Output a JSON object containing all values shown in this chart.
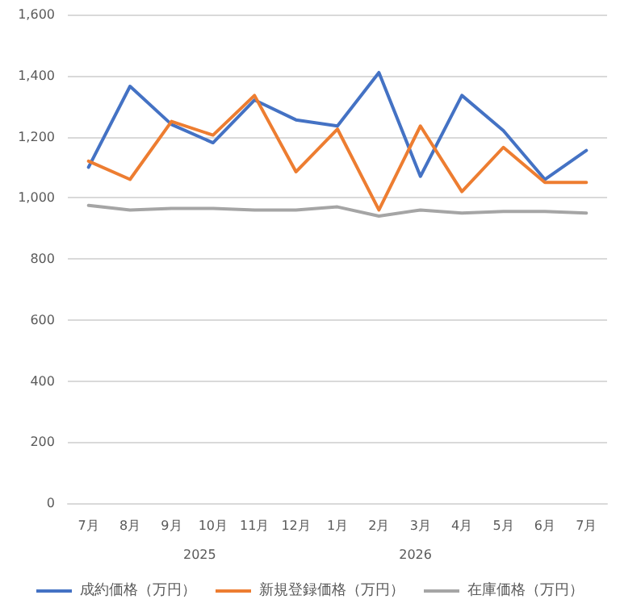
{
  "chart_data": {
    "type": "line",
    "categories": [
      "7月",
      "8月",
      "9月",
      "10月",
      "11月",
      "12月",
      "1月",
      "2月",
      "3月",
      "4月",
      "5月",
      "6月",
      "7月"
    ],
    "series": [
      {
        "name": "成約価格（万円）",
        "color": "#4472c4",
        "values": [
          1100,
          1365,
          1240,
          1180,
          1320,
          1255,
          1235,
          1410,
          1070,
          1335,
          1220,
          1060,
          1155
        ]
      },
      {
        "name": "新規登録価格（万円）",
        "color": "#ed7d31",
        "values": [
          1120,
          1060,
          1250,
          1205,
          1335,
          1085,
          1225,
          960,
          1235,
          1020,
          1165,
          1050,
          1050
        ]
      },
      {
        "name": "在庫価格（万円）",
        "color": "#a5a5a5",
        "values": [
          975,
          960,
          965,
          965,
          960,
          960,
          970,
          940,
          960,
          950,
          955,
          955,
          950
        ]
      }
    ],
    "annotations": [
      "2025",
      "2026"
    ],
    "ylim": [
      0,
      1600
    ],
    "yticks": [
      0,
      200,
      400,
      600,
      800,
      {
        "value": 1000,
        "label": "1,000"
      },
      {
        "value": 1200,
        "label": "1,200"
      },
      {
        "value": 1400,
        "label": "1,400"
      },
      {
        "value": 1600,
        "label": "1,600"
      }
    ],
    "grid": "y",
    "legend": "bottom",
    "marker": "none",
    "line_style": "solid"
  }
}
